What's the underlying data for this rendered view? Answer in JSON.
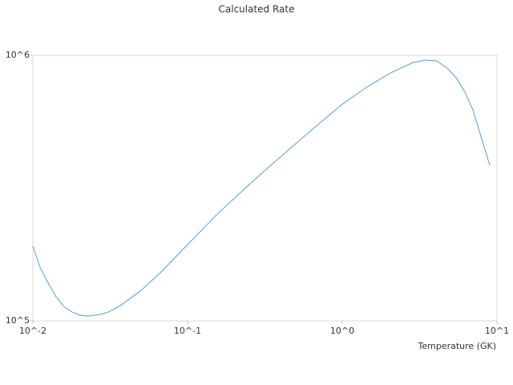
{
  "chart_data": {
    "type": "line",
    "title": "Calculated Rate",
    "x_label": "Temperature (GK)",
    "x_scale": "log",
    "y_scale": "log",
    "grid": false,
    "xlim": [
      0.01,
      10
    ],
    "ylim": [
      100000,
      1000000
    ],
    "xticks": [
      {
        "value": 0.01,
        "label": "10^-2"
      },
      {
        "value": 0.1,
        "label": "10^-1"
      },
      {
        "value": 1,
        "label": "10^0"
      },
      {
        "value": 10,
        "label": "10^1"
      }
    ],
    "yticks": [
      {
        "value": 100000,
        "label": "10^5"
      },
      {
        "value": 1000000,
        "label": "10^6"
      }
    ],
    "x": [
      0.01,
      0.01113,
      0.01254,
      0.01414,
      0.01592,
      0.01795,
      0.02022,
      0.02278,
      0.02723,
      0.03069,
      0.03671,
      0.04946,
      0.0667,
      0.1,
      0.1537,
      0.2198,
      0.3141,
      0.4495,
      0.6428,
      1,
      1.483,
      2.046,
      2.858,
      3.42,
      4.083,
      4.77,
      5.51,
      6.21,
      7.0,
      7.87,
      8.98
    ],
    "series": [
      {
        "color": "#5b9bd5",
        "values": [
          191000,
          159000,
          139000,
          123000,
          113000,
          107900,
          105000,
          104200,
          105700,
          107900,
          114100,
          129400,
          151800,
          193600,
          250600,
          304300,
          367300,
          440400,
          527300,
          654600,
          767600,
          858000,
          939300,
          959200,
          952600,
          894800,
          817400,
          726200,
          623000,
          495500,
          385500
        ]
      }
    ]
  }
}
